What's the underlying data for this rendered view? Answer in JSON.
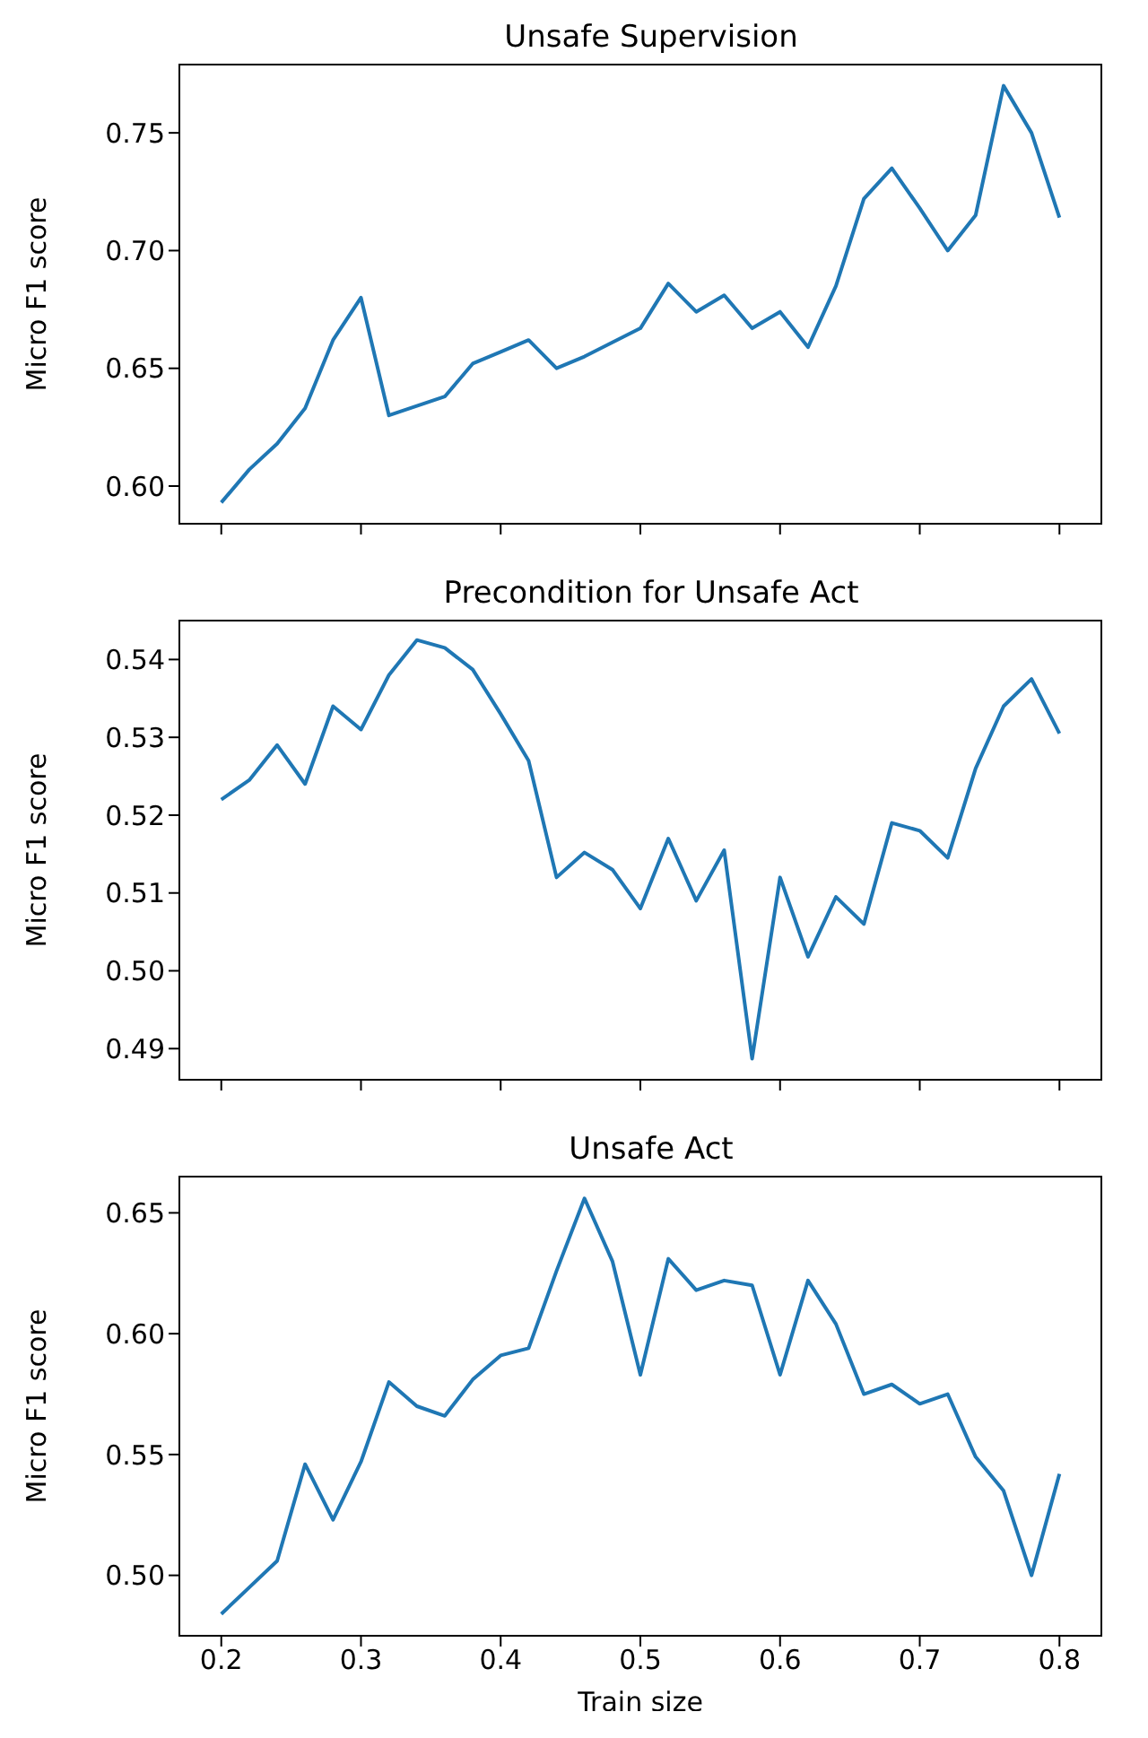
{
  "chart_data": [
    {
      "type": "line",
      "title": "Unsafe Supervision",
      "ylabel": "Micro F1 score",
      "x": [
        0.2,
        0.22,
        0.24,
        0.26,
        0.28,
        0.3,
        0.32,
        0.34,
        0.36,
        0.38,
        0.4,
        0.42,
        0.44,
        0.46,
        0.48,
        0.5,
        0.52,
        0.54,
        0.56,
        0.58,
        0.6,
        0.62,
        0.64,
        0.66,
        0.68,
        0.7,
        0.72,
        0.74,
        0.76,
        0.78,
        0.8
      ],
      "series": [
        {
          "color": "#1f77b4",
          "values": [
            0.593,
            0.607,
            0.618,
            0.633,
            0.662,
            0.68,
            0.63,
            0.634,
            0.638,
            0.652,
            0.657,
            0.662,
            0.65,
            0.655,
            0.661,
            0.667,
            0.686,
            0.674,
            0.681,
            0.667,
            0.674,
            0.659,
            0.685,
            0.722,
            0.735,
            0.718,
            0.7,
            0.715,
            0.77,
            0.75,
            0.714
          ]
        }
      ],
      "xlim": [
        0.17,
        0.83
      ],
      "xticks": [
        0.2,
        0.3,
        0.4,
        0.5,
        0.6,
        0.7,
        0.8
      ],
      "ylim": [
        0.584,
        0.779
      ],
      "yticks": [
        {
          "value": 0.6,
          "label": "0.60"
        },
        0.65,
        {
          "value": 0.7,
          "label": "0.70"
        },
        0.75
      ],
      "tick_labels": "y",
      "grid": false,
      "legend": false
    },
    {
      "type": "line",
      "title": "Precondition for Unsafe Act",
      "ylabel": "Micro F1 score",
      "x": [
        0.2,
        0.22,
        0.24,
        0.26,
        0.28,
        0.3,
        0.32,
        0.34,
        0.36,
        0.38,
        0.4,
        0.42,
        0.44,
        0.46,
        0.48,
        0.5,
        0.52,
        0.54,
        0.56,
        0.58,
        0.6,
        0.62,
        0.64,
        0.66,
        0.68,
        0.7,
        0.72,
        0.74,
        0.76,
        0.78,
        0.8
      ],
      "series": [
        {
          "color": "#1f77b4",
          "values": [
            0.522,
            0.5245,
            0.529,
            0.524,
            0.534,
            0.531,
            0.538,
            0.5425,
            0.5415,
            0.5387,
            0.533,
            0.527,
            0.512,
            0.5152,
            0.513,
            0.508,
            0.517,
            0.509,
            0.5155,
            0.4887,
            0.512,
            0.5018,
            0.5095,
            0.506,
            0.519,
            0.518,
            0.5145,
            0.526,
            0.534,
            0.5375,
            0.5305
          ]
        }
      ],
      "xlim": [
        0.17,
        0.83
      ],
      "xticks": [
        0.2,
        0.3,
        0.4,
        0.5,
        0.6,
        0.7,
        0.8
      ],
      "ylim": [
        0.486,
        0.545
      ],
      "yticks": [
        0.49,
        {
          "value": 0.5,
          "label": "0.50"
        },
        0.51,
        0.52,
        0.53,
        0.54
      ],
      "tick_labels": "y",
      "grid": false,
      "legend": false
    },
    {
      "type": "line",
      "title": "Unsafe Act",
      "xlabel": "Train size",
      "ylabel": "Micro F1 score",
      "x": [
        0.2,
        0.22,
        0.24,
        0.26,
        0.28,
        0.3,
        0.32,
        0.34,
        0.36,
        0.38,
        0.4,
        0.42,
        0.44,
        0.46,
        0.48,
        0.5,
        0.52,
        0.54,
        0.56,
        0.58,
        0.6,
        0.62,
        0.64,
        0.66,
        0.68,
        0.7,
        0.72,
        0.74,
        0.76,
        0.78,
        0.8
      ],
      "series": [
        {
          "color": "#1f77b4",
          "values": [
            0.484,
            0.495,
            0.506,
            0.546,
            0.523,
            0.547,
            0.58,
            0.57,
            0.566,
            0.581,
            0.591,
            0.594,
            0.626,
            0.656,
            0.63,
            0.583,
            0.631,
            0.618,
            0.622,
            0.62,
            0.583,
            0.622,
            0.604,
            0.575,
            0.579,
            0.571,
            0.575,
            0.549,
            0.535,
            0.5,
            0.542
          ]
        }
      ],
      "xlim": [
        0.17,
        0.83
      ],
      "xticks": [
        0.2,
        0.3,
        0.4,
        0.5,
        0.6,
        0.7,
        0.8
      ],
      "ylim": [
        0.475,
        0.665
      ],
      "yticks": [
        {
          "value": 0.5,
          "label": "0.50"
        },
        0.55,
        {
          "value": 0.6,
          "label": "0.60"
        },
        0.65
      ],
      "grid": false,
      "legend": false
    }
  ]
}
